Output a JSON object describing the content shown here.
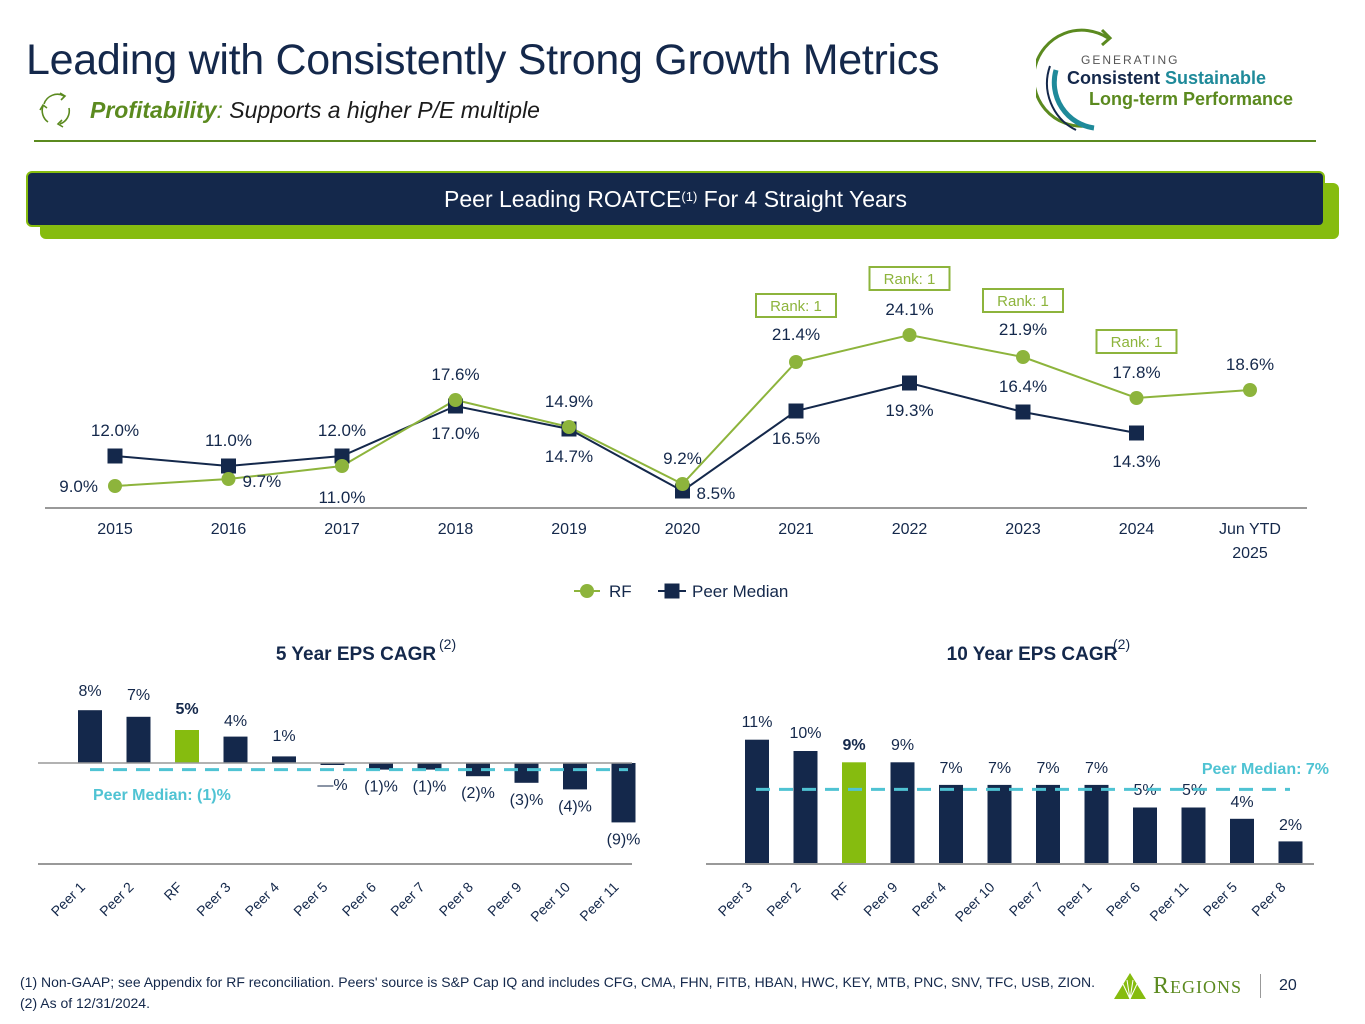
{
  "header": {
    "title": "Leading with Consistently Strong Growth Metrics",
    "subtitle_keyword": "Profitability",
    "subtitle_colon": ":",
    "subtitle_text": " Supports a higher P/E multiple",
    "cycle_icon": "recycle-arrows-icon"
  },
  "logo": {
    "line0": "GENERATING",
    "line1_a": "Consistent",
    "line1_b": " Sustainable",
    "line2": "Long-term Performance"
  },
  "banner": {
    "text_a": "Peer Leading ROATCE",
    "sup": "(1)",
    "text_b": " For 4 Straight Years"
  },
  "colors": {
    "navy": "#14284b",
    "green": "#86bc0f",
    "dark_green": "#5b8a1f",
    "rf_line": "#8db43c",
    "median_dash": "#4fc3d3",
    "axis": "#999999"
  },
  "chart_data": [
    {
      "type": "line",
      "title": "Peer Leading ROATCE For 4 Straight Years",
      "categories": [
        "2015",
        "2016",
        "2017",
        "2018",
        "2019",
        "2020",
        "2021",
        "2022",
        "2023",
        "2024",
        "Jun YTD 2025"
      ],
      "category_lines": [
        [
          "2015"
        ],
        [
          "2016"
        ],
        [
          "2017"
        ],
        [
          "2018"
        ],
        [
          "2019"
        ],
        [
          "2020"
        ],
        [
          "2021"
        ],
        [
          "2022"
        ],
        [
          "2023"
        ],
        [
          "2024"
        ],
        [
          "Jun YTD",
          "2025"
        ]
      ],
      "series": [
        {
          "name": "RF",
          "marker": "circle",
          "values": [
            9.0,
            9.7,
            11.0,
            17.6,
            14.9,
            9.2,
            21.4,
            24.1,
            21.9,
            17.8,
            18.6
          ],
          "labels": [
            "9.0%",
            "9.7%",
            "11.0%",
            "17.6%",
            "14.9%",
            "9.2%",
            "21.4%",
            "24.1%",
            "21.9%",
            "17.8%",
            "18.6%"
          ]
        },
        {
          "name": "Peer Median",
          "marker": "square",
          "values": [
            12.0,
            11.0,
            12.0,
            17.0,
            14.7,
            8.5,
            16.5,
            19.3,
            16.4,
            14.3,
            null
          ],
          "labels": [
            "12.0%",
            "11.0%",
            "12.0%",
            "17.0%",
            "14.7%",
            "8.5%",
            "16.5%",
            "19.3%",
            "16.4%",
            "14.3%",
            null
          ]
        }
      ],
      "annotations": [
        {
          "category": "2021",
          "text": "Rank: 1"
        },
        {
          "category": "2022",
          "text": "Rank: 1"
        },
        {
          "category": "2023",
          "text": "Rank: 1"
        },
        {
          "category": "2024",
          "text": "Rank: 1"
        }
      ],
      "legend": [
        "RF",
        "Peer Median"
      ],
      "legend_position": "bottom",
      "ylim": [
        6,
        26
      ],
      "grid": false,
      "xlabel": "",
      "ylabel": ""
    },
    {
      "type": "bar",
      "title": "5 Year EPS CAGR",
      "title_sup": "(2)",
      "categories": [
        "Peer 1",
        "Peer 2",
        "RF",
        "Peer 3",
        "Peer 4",
        "Peer 5",
        "Peer 6",
        "Peer 7",
        "Peer 8",
        "Peer 9",
        "Peer 10",
        "Peer 11"
      ],
      "values": [
        8,
        7,
        5,
        4,
        1,
        0,
        -1,
        -1,
        -2,
        -3,
        -4,
        -9
      ],
      "labels": [
        "8%",
        "7%",
        "5%",
        "4%",
        "1%",
        "—%",
        "(1)%",
        "(1)%",
        "(2)%",
        "(3)%",
        "(4)%",
        "(9)%"
      ],
      "highlight": "RF",
      "reference_line": {
        "value": -1,
        "label": "Peer Median: (1)%"
      },
      "ylim": [
        -10.5,
        9
      ],
      "grid": false
    },
    {
      "type": "bar",
      "title": "10 Year EPS CAGR",
      "title_sup": "(2)",
      "categories": [
        "Peer 3",
        "Peer 2",
        "RF",
        "Peer 9",
        "Peer 4",
        "Peer 10",
        "Peer 7",
        "Peer 1",
        "Peer 6",
        "Peer 11",
        "Peer 5",
        "Peer 8"
      ],
      "values": [
        11,
        10,
        9,
        9,
        7,
        7,
        7,
        7,
        5,
        5,
        4,
        2
      ],
      "labels": [
        "11%",
        "10%",
        "9%",
        "9%",
        "7%",
        "7%",
        "7%",
        "7%",
        "5%",
        "5%",
        "4%",
        "2%"
      ],
      "highlight": "RF",
      "reference_line": {
        "value": 6.6,
        "label": "Peer Median: 7%"
      },
      "ylim": [
        0,
        13
      ],
      "grid": false
    }
  ],
  "footer": {
    "footnote": "(1) Non-GAAP; see Appendix for RF reconciliation. Peers' source is S&P Cap IQ and includes CFG, CMA, FHN, FITB, HBAN, HWC, KEY, MTB, PNC, SNV, TFC, USB, ZION. (2) As of 12/31/2024.",
    "brand_first": "R",
    "brand_rest": "EGIONS",
    "page_number": "20"
  }
}
